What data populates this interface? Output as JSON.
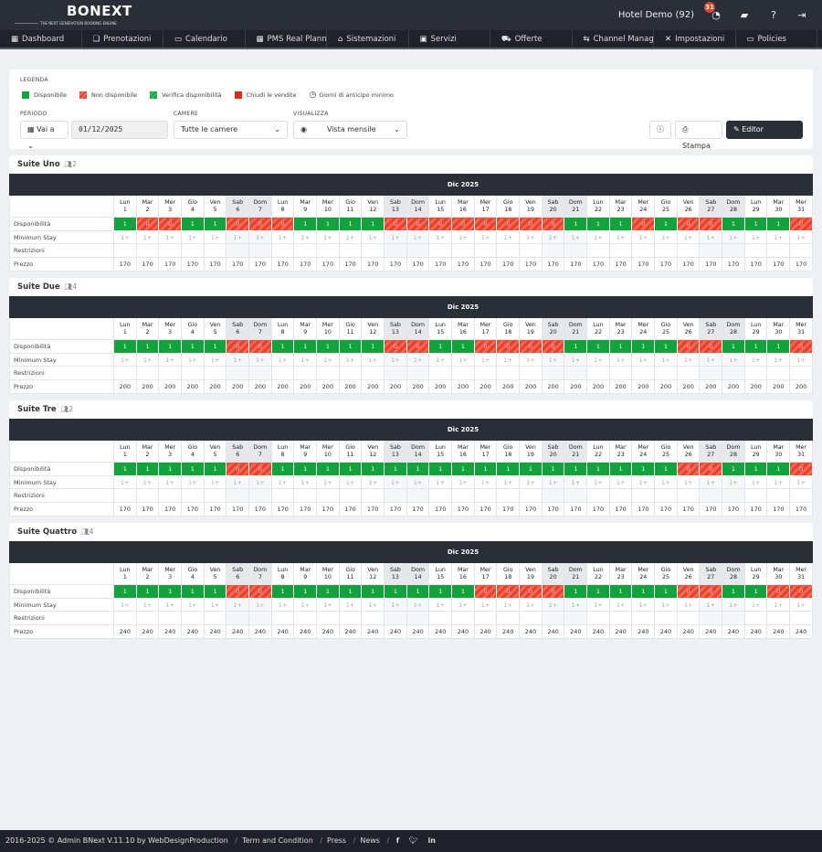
{
  "header": {
    "logo": "BONEXT",
    "tagline": "THE NEXT GENERATION BOOKING ENGINE",
    "hotel": "Hotel Demo (92)",
    "notifications": "31",
    "icons": [
      "bell-icon",
      "book-icon",
      "help-icon",
      "logout-icon"
    ]
  },
  "nav": [
    {
      "label": "Dashboard",
      "icon": "dashboard-icon",
      "glyph": "▦"
    },
    {
      "label": "Prenotazioni",
      "icon": "bookings-icon",
      "glyph": "❏"
    },
    {
      "label": "Calendario",
      "icon": "calendar-icon",
      "glyph": "▭"
    },
    {
      "label": "PMS Real Planning",
      "icon": "planning-icon",
      "glyph": "▦"
    },
    {
      "label": "Sistemazioni",
      "icon": "home-icon",
      "glyph": "⌂"
    },
    {
      "label": "Servizi",
      "icon": "services-icon",
      "glyph": "▣"
    },
    {
      "label": "Offerte",
      "icon": "cart-icon",
      "glyph": "⛟"
    },
    {
      "label": "Channel Manager",
      "icon": "exchange-icon",
      "glyph": "⇆"
    },
    {
      "label": "Impostazioni",
      "icon": "tools-icon",
      "glyph": "✕"
    },
    {
      "label": "Policies",
      "icon": "card-icon",
      "glyph": "▭"
    }
  ],
  "legend": {
    "title": "LEGENDA",
    "items": [
      {
        "label": "Disponibile",
        "color": "#12a33d"
      },
      {
        "label": "Non disponibile",
        "color": "#e8402c"
      },
      {
        "label": "Verifica disponibilità",
        "color": "#12a33d"
      },
      {
        "label": "Chiudi le vendite",
        "color": "#e02a1a"
      },
      {
        "label": "Giorni di anticipo minimo",
        "icon": "clock-icon"
      }
    ]
  },
  "filters": {
    "period_label": "PERIODO",
    "goto": "Vai a",
    "date": "01/12/2025",
    "rooms_label": "CAMERE",
    "rooms_value": "Tutte le camere",
    "view_label": "VISUALIZZA",
    "view_value": "Vista mensile",
    "print": "Stampa",
    "editor": "Editor avanzato"
  },
  "calendar": {
    "month": "Dic 2025",
    "row_labels": [
      "Disponibilità",
      "Minimum Stay",
      "Restrizioni",
      "Prezzo"
    ],
    "min_stay": "1+",
    "weekdays": [
      "Lun",
      "Mar",
      "Mer",
      "Gio",
      "Ven",
      "Sab",
      "Dom"
    ],
    "first_weekday_index": 0,
    "days": 31
  },
  "rooms": [
    {
      "name": "Suite Uno",
      "guests": "2",
      "price": "170",
      "availability": [
        1,
        0,
        0,
        1,
        1,
        0,
        0,
        0,
        1,
        1,
        1,
        1,
        0,
        0,
        0,
        0,
        0,
        0,
        0,
        0,
        1,
        1,
        1,
        0,
        1,
        0,
        0,
        1,
        1,
        1,
        0
      ]
    },
    {
      "name": "Suite Due",
      "guests": "4",
      "price": "200",
      "availability": [
        1,
        1,
        1,
        1,
        1,
        0,
        0,
        1,
        1,
        1,
        1,
        1,
        0,
        0,
        1,
        1,
        0,
        0,
        0,
        0,
        1,
        1,
        1,
        1,
        1,
        0,
        0,
        1,
        1,
        1,
        0
      ]
    },
    {
      "name": "Suite Tre",
      "guests": "2",
      "price": "170",
      "availability": [
        1,
        1,
        1,
        1,
        1,
        0,
        0,
        1,
        1,
        1,
        1,
        1,
        1,
        1,
        1,
        1,
        1,
        1,
        1,
        1,
        1,
        1,
        1,
        1,
        1,
        0,
        0,
        1,
        1,
        1,
        0
      ]
    },
    {
      "name": "Suite Quattro",
      "guests": "4",
      "price": "240",
      "availability": [
        1,
        1,
        1,
        1,
        1,
        0,
        0,
        1,
        1,
        1,
        1,
        1,
        1,
        1,
        1,
        1,
        0,
        0,
        0,
        0,
        1,
        1,
        1,
        1,
        1,
        0,
        0,
        1,
        1,
        0,
        0
      ]
    }
  ],
  "footer": {
    "copyright": "2016-2025 © Admin BNext V.11.10 by WebDesignProduction",
    "links": [
      "Term and Condition",
      "Press",
      "News"
    ],
    "social": [
      "facebook-icon",
      "twitter-icon",
      "linkedin-icon"
    ]
  }
}
